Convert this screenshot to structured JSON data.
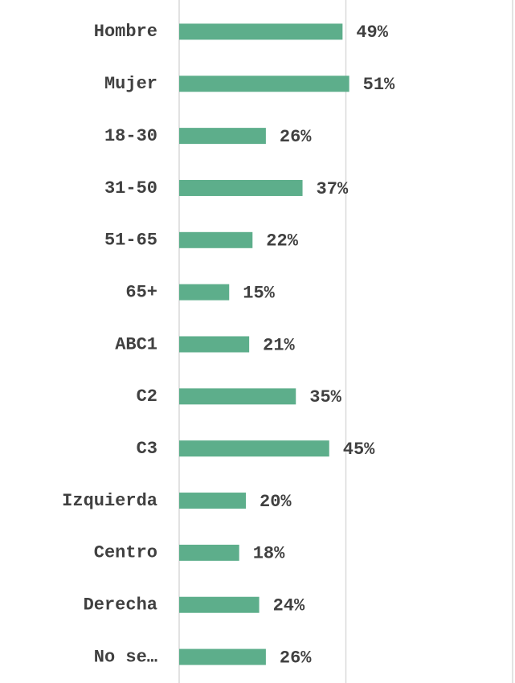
{
  "chart_data": {
    "type": "barh",
    "categories": [
      "Hombre",
      "Mujer",
      "18-30",
      "31-50",
      "51-65",
      "65+",
      "ABC1",
      "C2",
      "C3",
      "Izquierda",
      "Centro",
      "Derecha",
      "No se…"
    ],
    "values": [
      49,
      51,
      26,
      37,
      22,
      15,
      21,
      35,
      45,
      20,
      18,
      24,
      26
    ],
    "value_labels": [
      "49%",
      "51%",
      "26%",
      "37%",
      "22%",
      "15%",
      "21%",
      "35%",
      "45%",
      "20%",
      "18%",
      "24%",
      "26%"
    ],
    "color": "#5dae8b",
    "xlim": [
      0,
      100
    ],
    "xticks": [
      0,
      50,
      100
    ],
    "grid": true
  }
}
